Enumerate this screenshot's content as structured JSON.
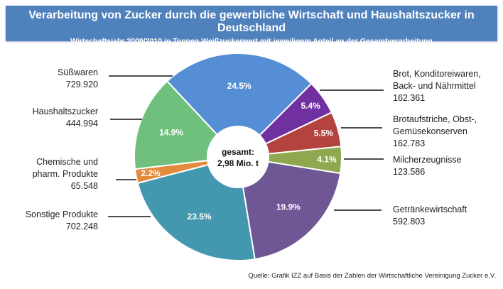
{
  "chart_data": {
    "type": "pie",
    "donut": true,
    "title": "Verarbeitung von Zucker durch die gewerbliche Wirtschaft und Haushaltszucker in Deutschland",
    "subtitle": "Wirtschaftsjahr 2009/2010  in Tonnen Weißzuckerwert mit jeweiligem Anteil an der Gesamtverarbeitung",
    "center_label": [
      "gesamt:",
      "2,98 Mio. t"
    ],
    "unit": "t",
    "slices": [
      {
        "name_lines": [
          "Brot, Konditoreiwaren,",
          "Back- und Nährmittel"
        ],
        "value_label": "162.361",
        "value": 162361,
        "percent_label": "5.4%",
        "color": "#7030a0"
      },
      {
        "name_lines": [
          "Brotaufstriche, Obst-,",
          "Gemüsekonserven"
        ],
        "value_label": "162.783",
        "value": 162783,
        "percent_label": "5.5%",
        "color": "#b4433f"
      },
      {
        "name_lines": [
          "Milcherzeugnisse"
        ],
        "value_label": "123.586",
        "value": 123586,
        "percent_label": "4.1%",
        "color": "#8da84f"
      },
      {
        "name_lines": [
          "Getränkewirtschaft"
        ],
        "value_label": "592.803",
        "value": 592803,
        "percent_label": "19.9%",
        "color": "#6f5695"
      },
      {
        "name_lines": [
          "Sonstige Produkte"
        ],
        "value_label": "702.248",
        "value": 702248,
        "percent_label": "23.5%",
        "color": "#4398b0"
      },
      {
        "name_lines": [
          "Chemische und",
          "pharm. Produkte"
        ],
        "value_label": "65.548",
        "value": 65548,
        "percent_label": "2.2%",
        "color": "#e38a3c"
      },
      {
        "name_lines": [
          "Haushaltszucker"
        ],
        "value_label": "444.994",
        "value": 444994,
        "percent_label": "14.9%",
        "color": "#6fc07d"
      },
      {
        "name_lines": [
          "Süßwaren"
        ],
        "value_label": "729.920",
        "value": 729920,
        "percent_label": "24.5%",
        "color": "#558ed5"
      }
    ],
    "title_bar_color": "#4f81bd"
  },
  "source": "Quelle: Grafik IZZ auf Basis der Zahlen der Wirtschaftliche Vereinigung Zucker e.V."
}
